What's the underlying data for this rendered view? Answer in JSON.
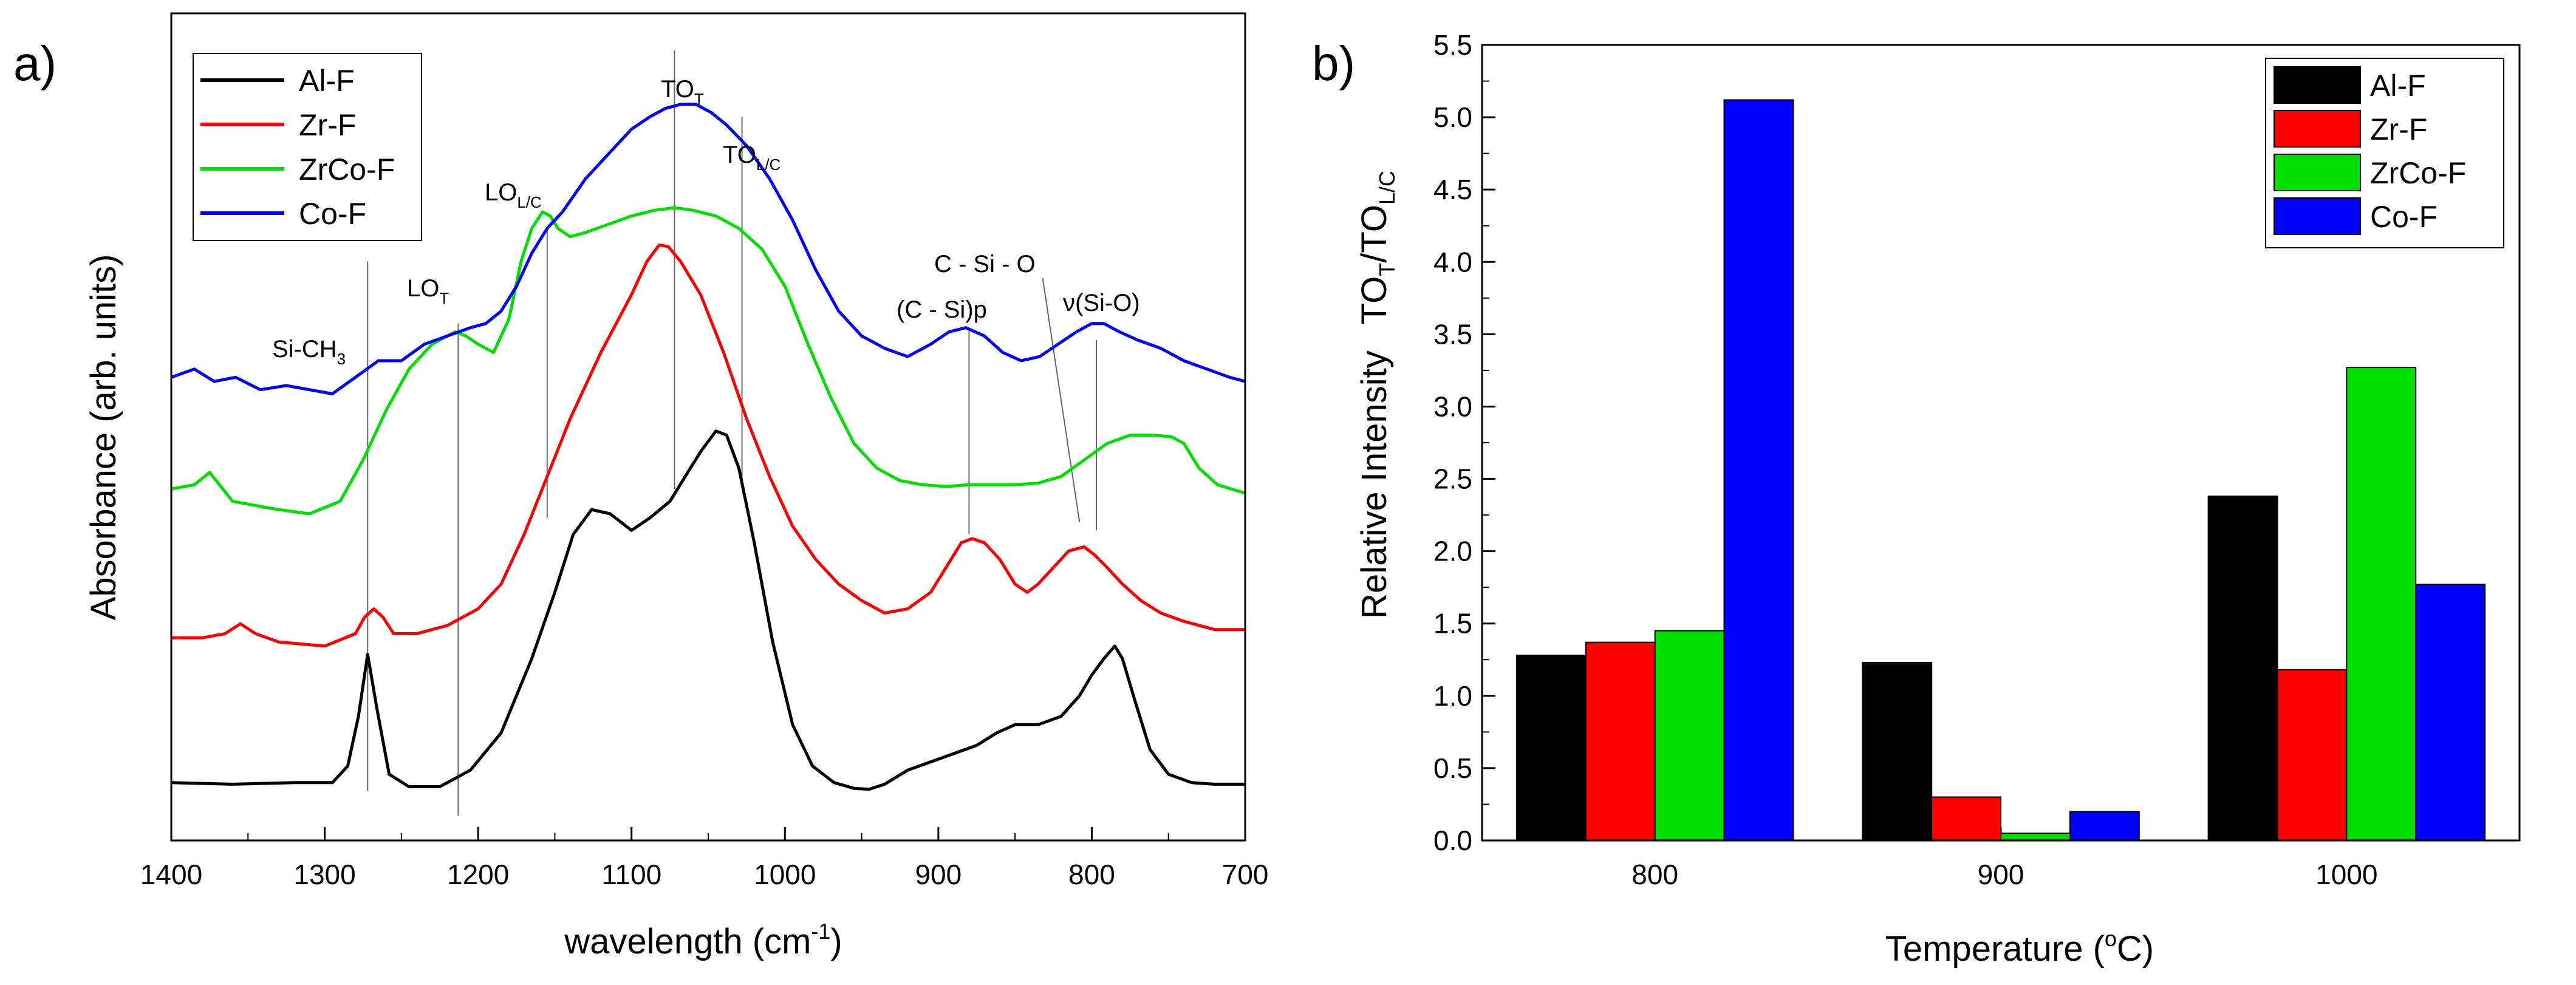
{
  "panel_a": {
    "label": "a)",
    "ylabel": "Absorbance (arb. units)",
    "xlabel_main": "wavelength (cm",
    "xlabel_sup": "-1",
    "xlabel_end": ")",
    "legend": [
      "Al-F",
      "Zr-F",
      "ZrCo-F",
      "Co-F"
    ],
    "annotations": {
      "sich3_main": "Si-CH",
      "sich3_sub": "3",
      "lot_main": "LO",
      "lot_sub": "T",
      "lolc_main": "LO",
      "lolc_sub": "L/C",
      "tot_main": "TO",
      "tot_sub": "T",
      "tolc_main": "TO",
      "tolc_sub": "L/C",
      "csio": "C - Si - O",
      "csip": "(C - Si)p",
      "nusio": "ν(Si-O)"
    }
  },
  "panel_b": {
    "label": "b)",
    "xlabel_main": "Temperature (",
    "xlabel_sup": "o",
    "xlabel_end": "C)",
    "ylabel_main": "Relative Intensity",
    "ylabel_ratio_1": "TO",
    "ylabel_ratio_1_sub": "T",
    "ylabel_ratio_2": "/TO",
    "ylabel_ratio_2_sub": "L/C"
  },
  "colors": {
    "Al-F": "#000000",
    "Zr-F": "#ff0000",
    "ZrCo-F": "#00e000",
    "Co-F": "#0000ff"
  },
  "chart_data": [
    {
      "type": "line",
      "title": "",
      "xlabel": "wavelength (cm-1)",
      "ylabel": "Absorbance (arb. units)",
      "xlim": [
        1400,
        700
      ],
      "ylim": [
        0,
        1
      ],
      "xticks": [
        1400,
        1300,
        1200,
        1100,
        1000,
        900,
        800,
        700
      ],
      "legend_position": "top-left",
      "series": [
        {
          "name": "Al-F",
          "x": [
            1400,
            1360,
            1320,
            1295,
            1285,
            1278,
            1272,
            1266,
            1258,
            1245,
            1225,
            1205,
            1185,
            1165,
            1150,
            1138,
            1126,
            1114,
            1100,
            1088,
            1075,
            1065,
            1055,
            1045,
            1038,
            1030,
            1020,
            1008,
            995,
            982,
            968,
            955,
            945,
            935,
            920,
            905,
            890,
            875,
            862,
            850,
            835,
            820,
            808,
            800,
            792,
            785,
            780,
            772,
            762,
            750,
            735,
            720,
            700
          ],
          "y": [
            0.07,
            0.068,
            0.07,
            0.07,
            0.09,
            0.15,
            0.225,
            0.16,
            0.08,
            0.065,
            0.065,
            0.085,
            0.13,
            0.22,
            0.3,
            0.37,
            0.4,
            0.395,
            0.375,
            0.39,
            0.41,
            0.44,
            0.47,
            0.495,
            0.49,
            0.45,
            0.36,
            0.24,
            0.14,
            0.09,
            0.07,
            0.063,
            0.062,
            0.068,
            0.085,
            0.095,
            0.105,
            0.115,
            0.13,
            0.14,
            0.14,
            0.15,
            0.175,
            0.2,
            0.22,
            0.235,
            0.22,
            0.17,
            0.11,
            0.08,
            0.07,
            0.068,
            0.068
          ]
        },
        {
          "name": "Zr-F",
          "x": [
            1400,
            1380,
            1365,
            1355,
            1345,
            1330,
            1300,
            1280,
            1274,
            1268,
            1262,
            1255,
            1240,
            1220,
            1200,
            1185,
            1170,
            1155,
            1140,
            1120,
            1100,
            1090,
            1082,
            1076,
            1068,
            1055,
            1040,
            1025,
            1010,
            995,
            980,
            965,
            950,
            935,
            920,
            905,
            895,
            885,
            878,
            870,
            860,
            850,
            842,
            835,
            825,
            815,
            805,
            798,
            790,
            780,
            768,
            755,
            740,
            720,
            700
          ],
          "y": [
            0.245,
            0.245,
            0.25,
            0.262,
            0.25,
            0.24,
            0.235,
            0.25,
            0.27,
            0.28,
            0.27,
            0.25,
            0.25,
            0.26,
            0.28,
            0.31,
            0.37,
            0.44,
            0.51,
            0.59,
            0.66,
            0.7,
            0.72,
            0.718,
            0.7,
            0.66,
            0.59,
            0.51,
            0.44,
            0.38,
            0.34,
            0.31,
            0.29,
            0.275,
            0.28,
            0.3,
            0.33,
            0.36,
            0.365,
            0.36,
            0.34,
            0.31,
            0.3,
            0.31,
            0.33,
            0.35,
            0.355,
            0.345,
            0.33,
            0.31,
            0.29,
            0.275,
            0.265,
            0.255,
            0.255
          ]
        },
        {
          "name": "ZrCo-F",
          "x": [
            1400,
            1385,
            1375,
            1360,
            1345,
            1330,
            1310,
            1290,
            1275,
            1260,
            1245,
            1230,
            1215,
            1208,
            1200,
            1190,
            1180,
            1172,
            1165,
            1158,
            1153,
            1148,
            1140,
            1130,
            1115,
            1100,
            1085,
            1072,
            1060,
            1045,
            1030,
            1015,
            1000,
            985,
            970,
            955,
            940,
            925,
            910,
            895,
            880,
            865,
            850,
            835,
            820,
            805,
            790,
            775,
            760,
            748,
            740,
            730,
            718,
            700
          ],
          "y": [
            0.425,
            0.43,
            0.445,
            0.41,
            0.405,
            0.4,
            0.395,
            0.41,
            0.46,
            0.52,
            0.57,
            0.6,
            0.615,
            0.61,
            0.6,
            0.59,
            0.63,
            0.7,
            0.74,
            0.76,
            0.755,
            0.74,
            0.73,
            0.735,
            0.745,
            0.755,
            0.762,
            0.765,
            0.762,
            0.755,
            0.74,
            0.715,
            0.67,
            0.6,
            0.535,
            0.48,
            0.45,
            0.435,
            0.43,
            0.428,
            0.43,
            0.43,
            0.43,
            0.432,
            0.44,
            0.46,
            0.48,
            0.49,
            0.49,
            0.488,
            0.48,
            0.45,
            0.43,
            0.42
          ]
        },
        {
          "name": "Co-F",
          "x": [
            1400,
            1385,
            1372,
            1358,
            1342,
            1325,
            1310,
            1295,
            1280,
            1265,
            1250,
            1235,
            1220,
            1205,
            1195,
            1185,
            1175,
            1165,
            1155,
            1145,
            1130,
            1115,
            1100,
            1088,
            1078,
            1068,
            1058,
            1048,
            1038,
            1025,
            1010,
            995,
            980,
            965,
            950,
            935,
            920,
            905,
            893,
            882,
            870,
            858,
            846,
            834,
            822,
            810,
            800,
            792,
            782,
            770,
            755,
            740,
            725,
            710,
            700
          ],
          "y": [
            0.56,
            0.57,
            0.555,
            0.56,
            0.545,
            0.55,
            0.545,
            0.54,
            0.56,
            0.58,
            0.58,
            0.6,
            0.61,
            0.62,
            0.625,
            0.64,
            0.67,
            0.71,
            0.74,
            0.76,
            0.8,
            0.83,
            0.86,
            0.875,
            0.885,
            0.89,
            0.89,
            0.88,
            0.865,
            0.84,
            0.8,
            0.75,
            0.69,
            0.64,
            0.61,
            0.595,
            0.585,
            0.6,
            0.615,
            0.62,
            0.61,
            0.59,
            0.58,
            0.585,
            0.6,
            0.615,
            0.625,
            0.625,
            0.615,
            0.605,
            0.595,
            0.58,
            0.57,
            0.56,
            0.555
          ]
        }
      ]
    },
    {
      "type": "bar",
      "title": "",
      "xlabel": "Temperature (oC)",
      "ylabel": "Relative Intensity TOT/TOL/C",
      "categories": [
        "800",
        "900",
        "1000"
      ],
      "ylim": [
        0,
        5.5
      ],
      "yticks": [
        "0.0",
        "0.5",
        "1.0",
        "1.5",
        "2.0",
        "2.5",
        "3.0",
        "3.5",
        "4.0",
        "4.5",
        "5.0",
        "5.5"
      ],
      "legend_position": "top-right",
      "series": [
        {
          "name": "Al-F",
          "values": [
            1.28,
            1.23,
            2.38
          ]
        },
        {
          "name": "Zr-F",
          "values": [
            1.37,
            0.3,
            1.18
          ]
        },
        {
          "name": "ZrCo-F",
          "values": [
            1.45,
            0.05,
            3.27
          ]
        },
        {
          "name": "Co-F",
          "values": [
            5.12,
            0.2,
            1.77
          ]
        }
      ]
    }
  ]
}
